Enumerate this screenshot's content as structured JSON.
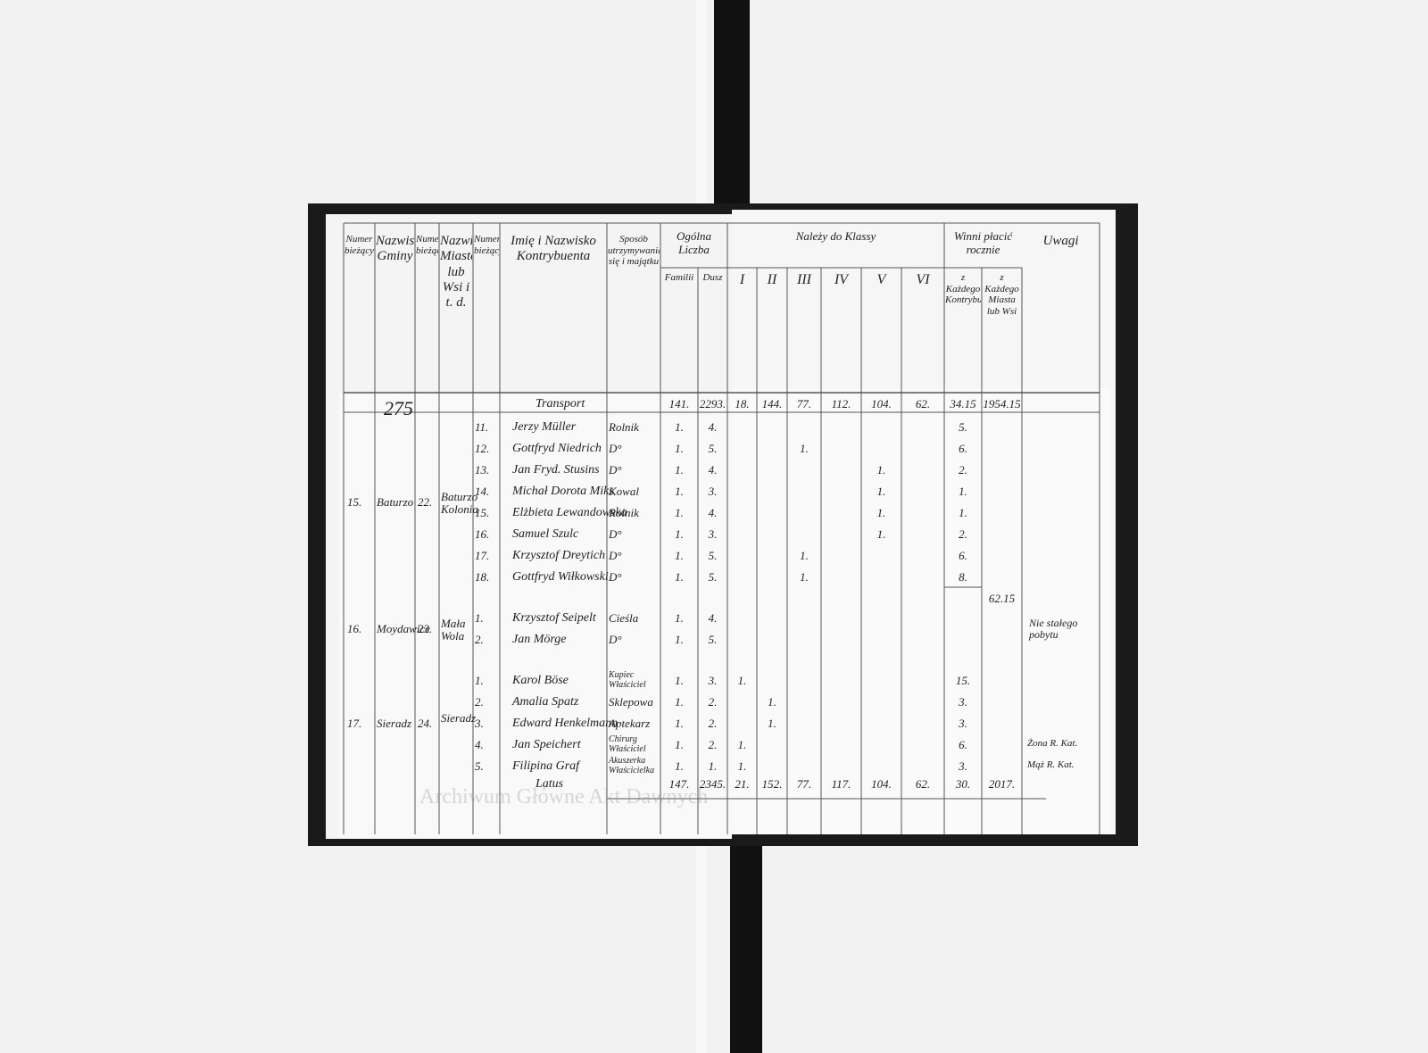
{
  "page_number": "275",
  "watermark": "Archiwum Główne Akt Dawnych",
  "header": {
    "group_ogolna": "Ogólna Liczba",
    "group_klasy": "Należy do Klassy",
    "group_winni": "Winni płacić rocznie",
    "columns": [
      "Numer bieżący",
      "Nazwisko Gminy",
      "Numer bieżący",
      "Nazwisko Miasta lub Wsi i t. d.",
      "Numer bieżący",
      "Imię i Nazwisko Kontrybuenta",
      "Sposób utrzymywania się i majątku",
      "Familii",
      "Dusz",
      "I",
      "II",
      "III",
      "IV",
      "V",
      "VI",
      "z Każdego Kontrybuenta",
      "z Każdego Miasta lub Wsi",
      "Uwagi"
    ]
  },
  "transport": {
    "label": "Transport",
    "values": [
      "141.",
      "2293.",
      "18.",
      "144.",
      "77.",
      "112.",
      "104.",
      "62.",
      "34.15",
      "1954.15"
    ]
  },
  "groups": [
    {
      "no": "15.",
      "gmina": "Baturzo",
      "place_no": "22.",
      "place": "Baturzo Kolonia",
      "subtotal": "62.15",
      "rows": [
        {
          "no": "11.",
          "name": "Jerzy Müller",
          "occupation": "Rolnik",
          "familii": "1.",
          "dusz": "4.",
          "tax": "5."
        },
        {
          "no": "12.",
          "name": "Gottfryd Niedrich",
          "occupation": "D°",
          "familii": "1.",
          "dusz": "5.",
          "klasa": "III",
          "klasa_count": "1.",
          "tax": "6."
        },
        {
          "no": "13.",
          "name": "Jan Fryd. Stusins",
          "occupation": "D°",
          "familii": "1.",
          "dusz": "4.",
          "klasa": "V",
          "klasa_count": "1.",
          "tax": "2."
        },
        {
          "no": "14.",
          "name": "Michał Dorota Miks",
          "occupation": "Kowal",
          "familii": "1.",
          "dusz": "3.",
          "klasa": "V",
          "klasa_count": "1.",
          "tax": "1."
        },
        {
          "no": "15.",
          "name": "Elżbieta Lewandowska",
          "occupation": "Rolnik",
          "familii": "1.",
          "dusz": "4.",
          "klasa": "V",
          "klasa_count": "1.",
          "tax": "1."
        },
        {
          "no": "16.",
          "name": "Samuel Szulc",
          "occupation": "D°",
          "familii": "1.",
          "dusz": "3.",
          "klasa": "V",
          "klasa_count": "1.",
          "tax": "2."
        },
        {
          "no": "17.",
          "name": "Krzysztof Dreytich",
          "occupation": "D°",
          "familii": "1.",
          "dusz": "5.",
          "klasa": "III",
          "klasa_count": "1.",
          "tax": "6."
        },
        {
          "no": "18.",
          "name": "Gottfryd Wiłkowski",
          "occupation": "D°",
          "familii": "1.",
          "dusz": "5.",
          "klasa": "III",
          "klasa_count": "1.",
          "tax": "8."
        }
      ]
    },
    {
      "no": "16.",
      "gmina": "Moydawice",
      "place_no": "23.",
      "place": "Mała Wola",
      "remarks": "Nie stałego pobytu",
      "rows": [
        {
          "no": "1.",
          "name": "Krzysztof Seipelt",
          "occupation": "Cieśla",
          "familii": "1.",
          "dusz": "4."
        },
        {
          "no": "2.",
          "name": "Jan Mörge",
          "occupation": "D°",
          "familii": "1.",
          "dusz": "5."
        }
      ]
    },
    {
      "no": "17.",
      "gmina": "Sieradz",
      "place_no": "24.",
      "place": "Sieradz",
      "rows": [
        {
          "no": "1.",
          "name": "Karol Böse",
          "occupation": "Kupiec Właściciel",
          "familii": "1.",
          "dusz": "3.",
          "klasa": "I",
          "klasa_count": "1.",
          "tax": "15."
        },
        {
          "no": "2.",
          "name": "Amalia Spatz",
          "occupation": "Sklepowa",
          "familii": "1.",
          "dusz": "2.",
          "klasa": "II",
          "klasa_count": "1.",
          "tax": "3."
        },
        {
          "no": "3.",
          "name": "Edward Henkelmann",
          "occupation": "Aptekarz",
          "familii": "1.",
          "dusz": "2.",
          "klasa": "II",
          "klasa_count": "1.",
          "tax": "3."
        },
        {
          "no": "4.",
          "name": "Jan Speichert",
          "occupation": "Chirurg Właściciel",
          "familii": "1.",
          "dusz": "2.",
          "klasa": "I",
          "klasa_count": "1.",
          "tax": "6.",
          "remarks": "Żona R. Kat."
        },
        {
          "no": "5.",
          "name": "Filipina Graf",
          "occupation": "Akuszerka Właścicielka",
          "familii": "1.",
          "dusz": "1.",
          "klasa": "I",
          "klasa_count": "1.",
          "tax": "3.",
          "remarks": "Mąż R. Kat."
        }
      ]
    }
  ],
  "latus": {
    "label": "Latus",
    "values": [
      "147.",
      "2345.",
      "21.",
      "152.",
      "77.",
      "117.",
      "104.",
      "62.",
      "30.",
      "2017."
    ]
  }
}
